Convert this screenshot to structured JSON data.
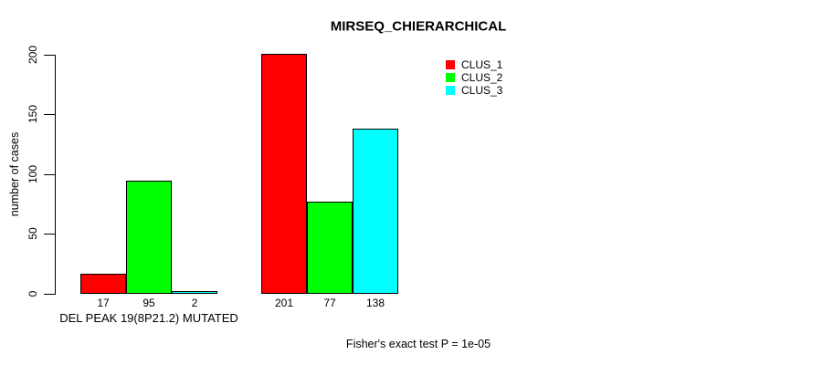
{
  "chart_data": {
    "type": "bar",
    "title": "MIRSEQ_CHIERARCHICAL",
    "ylabel": "number of cases",
    "xlabel": "",
    "footnote": "Fisher's exact test P = 1e-05",
    "ylim": [
      0,
      200
    ],
    "yticks": [
      0,
      50,
      100,
      150,
      200
    ],
    "grid": false,
    "background_color": "#ffffff",
    "bar_border_color": "#000000",
    "categories": [
      "DEL PEAK 19(8P21.2) MUTATED",
      ""
    ],
    "series": [
      {
        "name": "CLUS_1",
        "color": "#ff0000",
        "values": [
          17,
          201
        ]
      },
      {
        "name": "CLUS_2",
        "color": "#00ff00",
        "values": [
          95,
          77
        ]
      },
      {
        "name": "CLUS_3",
        "color": "#00ffff",
        "values": [
          2,
          138
        ]
      }
    ],
    "value_labels_shown": true,
    "legend": {
      "position": "top-right",
      "entries": [
        "CLUS_1",
        "CLUS_2",
        "CLUS_3"
      ]
    }
  }
}
